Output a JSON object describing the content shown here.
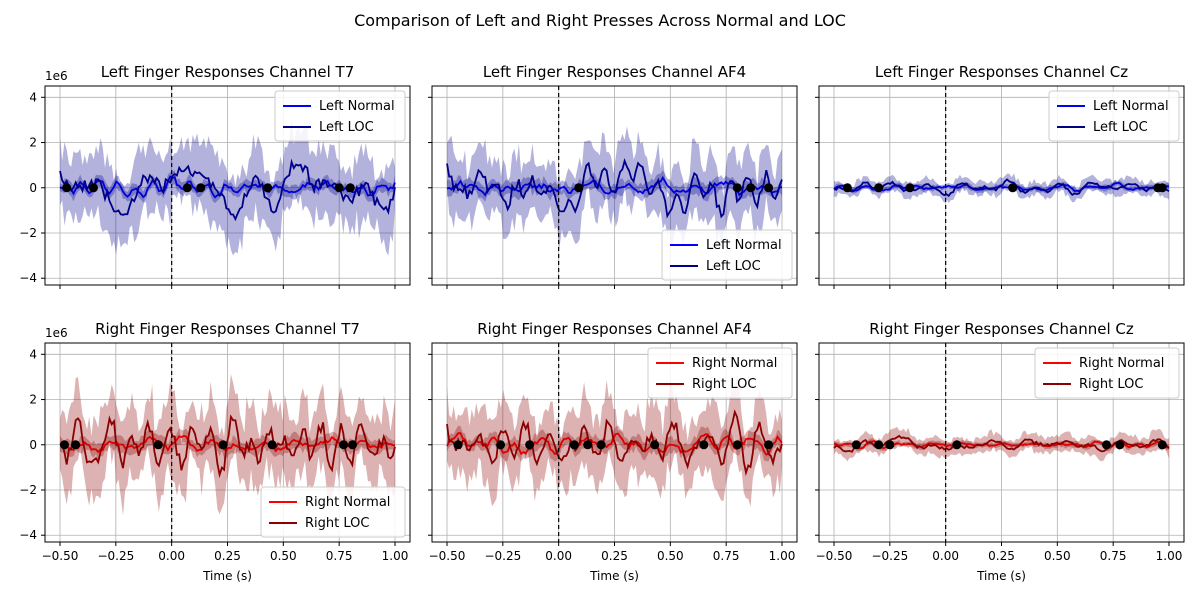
{
  "figure": {
    "suptitle": "Comparison of Left and Right Presses Across Normal and LOC",
    "xlabel": "Time (s)",
    "y_offset_label": "1e6"
  },
  "colors": {
    "left_normal": "#0000ff",
    "left_loc": "#00008b",
    "right_normal": "#ff0000",
    "right_loc": "#8b0000",
    "left_band": "#00008b",
    "right_band": "#8b0000",
    "marker": "#000000"
  },
  "chart_data": [
    {
      "type": "line",
      "row": 0,
      "col": 0,
      "title": "Left Finger Responses Channel T7",
      "xlim": [
        -0.5,
        1.0
      ],
      "ylim": [
        -4.3,
        4.5
      ],
      "xticks": [
        -0.5,
        -0.25,
        0.0,
        0.25,
        0.5,
        0.75,
        1.0
      ],
      "xtick_labels": [
        "−0.50",
        "−0.25",
        "0.00",
        "0.25",
        "0.50",
        "0.75",
        "1.00"
      ],
      "yticks": [
        -4,
        -2,
        0,
        2,
        4
      ],
      "ytick_labels": [
        "−4",
        "−2",
        "0",
        "2",
        "4"
      ],
      "grid": true,
      "legend_position": "upper right",
      "show_xticklabels": false,
      "show_yticklabels": true,
      "vline_x": 0,
      "series": [
        {
          "name": "Left Normal",
          "key": "left_normal",
          "amp": 0.35,
          "seed": 11,
          "band": 0.25
        },
        {
          "name": "Left LOC",
          "key": "left_loc",
          "amp": 1.0,
          "seed": 12,
          "band": 1.4
        }
      ],
      "markers_x": [
        -0.47,
        -0.35,
        0.07,
        0.13,
        0.43,
        0.75,
        0.8
      ]
    },
    {
      "type": "line",
      "row": 0,
      "col": 1,
      "title": "Left Finger Responses Channel AF4",
      "xlim": [
        -0.5,
        1.0
      ],
      "ylim": [
        -4.3,
        4.5
      ],
      "xticks": [
        -0.5,
        -0.25,
        0.0,
        0.25,
        0.5,
        0.75,
        1.0
      ],
      "xtick_labels": [
        "−0.50",
        "−0.25",
        "0.00",
        "0.25",
        "0.50",
        "0.75",
        "1.00"
      ],
      "yticks": [
        -4,
        -2,
        0,
        2,
        4
      ],
      "ytick_labels": [
        "−4",
        "−2",
        "0",
        "2",
        "4"
      ],
      "grid": true,
      "legend_position": "lower right",
      "show_xticklabels": false,
      "show_yticklabels": false,
      "vline_x": 0,
      "series": [
        {
          "name": "Left Normal",
          "key": "left_normal",
          "amp": 0.35,
          "seed": 21,
          "band": 0.3
        },
        {
          "name": "Left LOC",
          "key": "left_loc",
          "amp": 0.9,
          "seed": 22,
          "band": 1.3
        }
      ],
      "markers_x": [
        0.09,
        0.8,
        0.86,
        0.94
      ]
    },
    {
      "type": "line",
      "row": 0,
      "col": 2,
      "title": "Left Finger Responses Channel Cz",
      "xlim": [
        -0.5,
        1.0
      ],
      "ylim": [
        -4.3,
        4.5
      ],
      "xticks": [
        -0.5,
        -0.25,
        0.0,
        0.25,
        0.5,
        0.75,
        1.0
      ],
      "xtick_labels": [
        "−0.50",
        "−0.25",
        "0.00",
        "0.25",
        "0.50",
        "0.75",
        "1.00"
      ],
      "yticks": [
        -4,
        -2,
        0,
        2,
        4
      ],
      "ytick_labels": [
        "−4",
        "−2",
        "0",
        "2",
        "4"
      ],
      "grid": true,
      "legend_position": "upper right",
      "show_xticklabels": false,
      "show_yticklabels": false,
      "vline_x": 0,
      "series": [
        {
          "name": "Left Normal",
          "key": "left_normal",
          "amp": 0.12,
          "seed": 31,
          "band": 0.12
        },
        {
          "name": "Left LOC",
          "key": "left_loc",
          "amp": 0.2,
          "seed": 32,
          "band": 0.3
        }
      ],
      "markers_x": [
        -0.44,
        -0.3,
        -0.16,
        0.3,
        0.95,
        0.97
      ]
    },
    {
      "type": "line",
      "row": 1,
      "col": 0,
      "title": "Right Finger Responses Channel T7",
      "xlim": [
        -0.5,
        1.0
      ],
      "ylim": [
        -4.3,
        4.5
      ],
      "xticks": [
        -0.5,
        -0.25,
        0.0,
        0.25,
        0.5,
        0.75,
        1.0
      ],
      "xtick_labels": [
        "−0.50",
        "−0.25",
        "0.00",
        "0.25",
        "0.50",
        "0.75",
        "1.00"
      ],
      "yticks": [
        -4,
        -2,
        0,
        2,
        4
      ],
      "ytick_labels": [
        "−4",
        "−2",
        "0",
        "2",
        "4"
      ],
      "grid": true,
      "legend_position": "lower right",
      "show_xticklabels": true,
      "show_yticklabels": true,
      "vline_x": 0,
      "series": [
        {
          "name": "Right Normal",
          "key": "right_normal",
          "amp": 0.35,
          "seed": 41,
          "band": 0.3
        },
        {
          "name": "Right LOC",
          "key": "right_loc",
          "amp": 1.0,
          "seed": 42,
          "band": 1.5
        }
      ],
      "markers_x": [
        -0.48,
        -0.43,
        -0.06,
        0.23,
        0.45,
        0.77,
        0.81
      ]
    },
    {
      "type": "line",
      "row": 1,
      "col": 1,
      "title": "Right Finger Responses Channel AF4",
      "xlim": [
        -0.5,
        1.0
      ],
      "ylim": [
        -4.3,
        4.5
      ],
      "xticks": [
        -0.5,
        -0.25,
        0.0,
        0.25,
        0.5,
        0.75,
        1.0
      ],
      "xtick_labels": [
        "−0.50",
        "−0.25",
        "0.00",
        "0.25",
        "0.50",
        "0.75",
        "1.00"
      ],
      "yticks": [
        -4,
        -2,
        0,
        2,
        4
      ],
      "ytick_labels": [
        "−4",
        "−2",
        "0",
        "2",
        "4"
      ],
      "grid": true,
      "legend_position": "upper right",
      "show_xticklabels": true,
      "show_yticklabels": false,
      "vline_x": 0,
      "series": [
        {
          "name": "Right Normal",
          "key": "right_normal",
          "amp": 0.35,
          "seed": 51,
          "band": 0.3
        },
        {
          "name": "Right LOC",
          "key": "right_loc",
          "amp": 0.9,
          "seed": 52,
          "band": 1.4
        }
      ],
      "markers_x": [
        -0.45,
        -0.26,
        -0.13,
        0.07,
        0.13,
        0.19,
        0.43,
        0.65,
        0.8,
        0.94
      ]
    },
    {
      "type": "line",
      "row": 1,
      "col": 2,
      "title": "Right Finger Responses Channel Cz",
      "xlim": [
        -0.5,
        1.0
      ],
      "ylim": [
        -4.3,
        4.5
      ],
      "xticks": [
        -0.5,
        -0.25,
        0.0,
        0.25,
        0.5,
        0.75,
        1.0
      ],
      "xtick_labels": [
        "−0.50",
        "−0.25",
        "0.00",
        "0.25",
        "0.50",
        "0.75",
        "1.00"
      ],
      "yticks": [
        -4,
        -2,
        0,
        2,
        4
      ],
      "ytick_labels": [
        "−4",
        "−2",
        "0",
        "2",
        "4"
      ],
      "grid": true,
      "legend_position": "upper right",
      "show_xticklabels": true,
      "show_yticklabels": false,
      "vline_x": 0,
      "series": [
        {
          "name": "Right Normal",
          "key": "right_normal",
          "amp": 0.12,
          "seed": 61,
          "band": 0.12
        },
        {
          "name": "Right LOC",
          "key": "right_loc",
          "amp": 0.22,
          "seed": 62,
          "band": 0.35
        }
      ],
      "markers_x": [
        -0.4,
        -0.3,
        -0.25,
        0.05,
        0.72,
        0.78,
        0.97
      ]
    }
  ]
}
